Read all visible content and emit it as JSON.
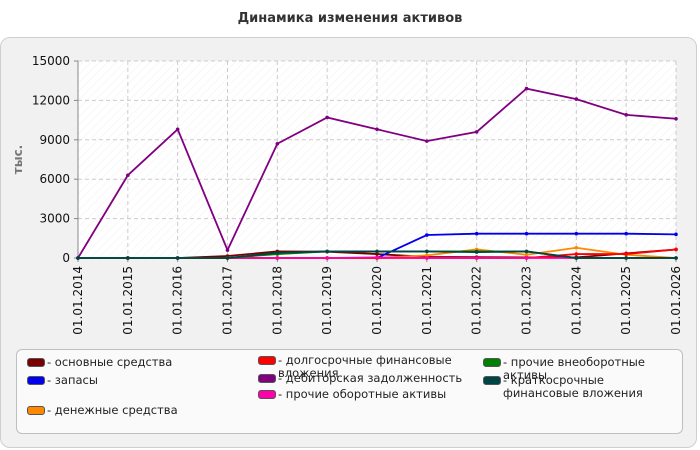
{
  "chart_data": {
    "type": "line",
    "title": "Динамика изменения активов",
    "ylabel": "тыс.",
    "xlabel": "",
    "ylim": [
      0,
      15000
    ],
    "yticks": [
      0,
      3000,
      6000,
      9000,
      12000,
      15000
    ],
    "grid": true,
    "legend_position": "bottom",
    "categories": [
      "01.01.2014",
      "01.01.2015",
      "01.01.2016",
      "01.01.2017",
      "01.01.2018",
      "01.01.2019",
      "01.01.2020",
      "01.01.2021",
      "01.01.2022",
      "01.01.2023",
      "01.01.2024",
      "01.01.2025",
      "01.01.2026"
    ],
    "series": [
      {
        "name": "- основные средства",
        "color": "#7a0000",
        "values": [
          0,
          0,
          0,
          150,
          500,
          480,
          300,
          80,
          60,
          50,
          50,
          350,
          650
        ]
      },
      {
        "name": "- запасы",
        "color": "#0000ee",
        "values": [
          0,
          0,
          0,
          0,
          0,
          0,
          0,
          1750,
          1850,
          1850,
          1850,
          1850,
          1800
        ]
      },
      {
        "name": "- денежные средства",
        "color": "#ff8800",
        "values": [
          0,
          0,
          0,
          0,
          0,
          0,
          0,
          200,
          650,
          250,
          780,
          250,
          0
        ]
      },
      {
        "name": "- долгосрочные финансовые вложения",
        "color": "#ff0000",
        "values": [
          0,
          0,
          0,
          0,
          0,
          0,
          0,
          0,
          0,
          0,
          300,
          300,
          650
        ]
      },
      {
        "name": "- дебиторская задолженность",
        "color": "#800080",
        "values": [
          0,
          6300,
          9800,
          600,
          8700,
          10700,
          9800,
          8900,
          9600,
          12900,
          12100,
          10900,
          10600
        ]
      },
      {
        "name": "- прочие оборотные активы",
        "color": "#ff00aa",
        "values": [
          0,
          0,
          0,
          0,
          0,
          0,
          50,
          0,
          0,
          0,
          0,
          0,
          0
        ]
      },
      {
        "name": "- прочие внеоборотные активы",
        "color": "#008000",
        "values": [
          0,
          0,
          0,
          0,
          300,
          500,
          500,
          500,
          500,
          500,
          0,
          0,
          0
        ]
      },
      {
        "name": "- краткосрочные финансовые вложения",
        "color": "#004444",
        "values": [
          0,
          0,
          0,
          0,
          400,
          500,
          500,
          500,
          450,
          500,
          0,
          0,
          0
        ]
      }
    ]
  }
}
